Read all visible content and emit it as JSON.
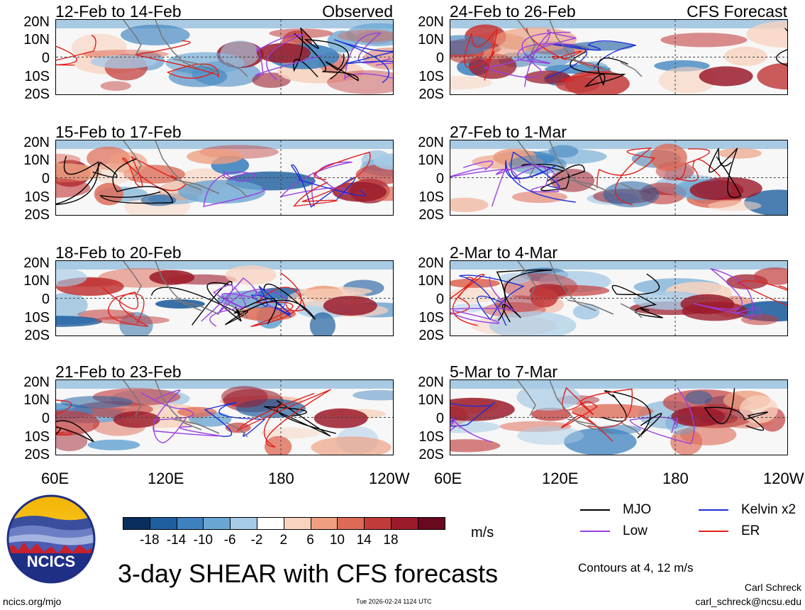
{
  "title": "3-day SHEAR with CFS forecasts",
  "panel_labels": {
    "observed": "Observed",
    "forecast": "CFS Forecast"
  },
  "left_panels": [
    {
      "title": "12-Feb to 14-Feb"
    },
    {
      "title": "15-Feb to 17-Feb"
    },
    {
      "title": "18-Feb to 20-Feb"
    },
    {
      "title": "21-Feb to 23-Feb"
    }
  ],
  "right_panels": [
    {
      "title": "24-Feb to 26-Feb"
    },
    {
      "title": "27-Feb to 1-Mar"
    },
    {
      "title": "2-Mar to 4-Mar"
    },
    {
      "title": "5-Mar to 7-Mar"
    }
  ],
  "lat_labels": [
    "20N",
    "10N",
    "0",
    "10S",
    "20S"
  ],
  "lon_labels": [
    "60E",
    "120E",
    "180",
    "120W"
  ],
  "colorbar": {
    "unit": "m/s",
    "labels": [
      "-18",
      "-14",
      "-10",
      "-6",
      "-2",
      "2",
      "6",
      "10",
      "14",
      "18"
    ],
    "colors": [
      "#0a2f5e",
      "#1f5fa0",
      "#3d82bf",
      "#6aa6d3",
      "#a7cbe6",
      "#ffffff",
      "#f8d3bf",
      "#ee9f80",
      "#dd6a56",
      "#c23a3a",
      "#9b1b2b",
      "#6a0820"
    ]
  },
  "legend": {
    "items": [
      {
        "label": "MJO",
        "color": "#000000"
      },
      {
        "label": "Kelvin x2",
        "color": "#1a2fd6"
      },
      {
        "label": "Low",
        "color": "#9a3fe0"
      },
      {
        "label": "ER",
        "color": "#e0201c"
      }
    ],
    "contours_note": "Contours at 4, 12 m/s"
  },
  "branding": {
    "logo_text": "NCICS",
    "url": "ncics.org/mjo",
    "timestamp": "Tue 2026-02-24 1124 UTC",
    "author": "Carl Schreck",
    "email": "carl_schreck@ncsu.edu"
  }
}
